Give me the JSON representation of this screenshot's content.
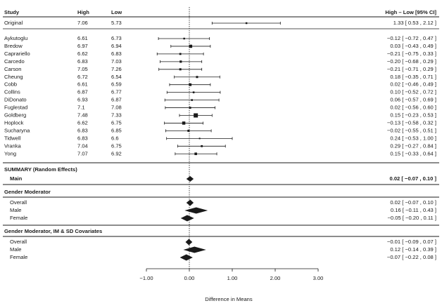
{
  "chart_data": {
    "type": "forest",
    "header": {
      "study": "Study",
      "high": "High",
      "low": "Low",
      "effect": "High – Low [95% CI]"
    },
    "original": {
      "label": "Original",
      "high": "7.06",
      "low": "5.73",
      "est": 1.33,
      "lo": 0.53,
      "hi": 2.12,
      "ci_text": "1.33 [ 0.53 , 2.12 ]"
    },
    "studies": [
      {
        "label": "Aykutoglu",
        "high": "6.61",
        "low": "6.73",
        "est": -0.12,
        "lo": -0.72,
        "hi": 0.47,
        "ci_text": "−0.12 [ −0.72 , 0.47 ]"
      },
      {
        "label": "Bredow",
        "high": "6.97",
        "low": "6.94",
        "est": 0.03,
        "lo": -0.43,
        "hi": 0.49,
        "ci_text": "0.03 [ −0.43 , 0.49 ]"
      },
      {
        "label": "Caprariello",
        "high": "6.62",
        "low": "6.83",
        "est": -0.21,
        "lo": -0.75,
        "hi": 0.33,
        "ci_text": "−0.21 [ −0.75 , 0.33 ]"
      },
      {
        "label": "Carcedo",
        "high": "6.83",
        "low": "7.03",
        "est": -0.2,
        "lo": -0.68,
        "hi": 0.29,
        "ci_text": "−0.20 [ −0.68 , 0.29 ]"
      },
      {
        "label": "Carson",
        "high": "7.05",
        "low": "7.26",
        "est": -0.21,
        "lo": -0.71,
        "hi": 0.29,
        "ci_text": "−0.21 [ −0.71 , 0.29 ]"
      },
      {
        "label": "Cheung",
        "high": "6.72",
        "low": "6.54",
        "est": 0.18,
        "lo": -0.35,
        "hi": 0.71,
        "ci_text": "0.18 [ −0.35 , 0.71 ]"
      },
      {
        "label": "Cobb",
        "high": "6.61",
        "low": "6.59",
        "est": 0.02,
        "lo": -0.46,
        "hi": 0.49,
        "ci_text": "0.02 [ −0.46 , 0.49 ]"
      },
      {
        "label": "Collins",
        "high": "6.87",
        "low": "6.77",
        "est": 0.1,
        "lo": -0.52,
        "hi": 0.72,
        "ci_text": "0.10 [ −0.52 , 0.72 ]"
      },
      {
        "label": "DiDonato",
        "high": "6.93",
        "low": "6.87",
        "est": 0.06,
        "lo": -0.57,
        "hi": 0.69,
        "ci_text": "0.06 [ −0.57 , 0.69 ]"
      },
      {
        "label": "Fuglestad",
        "high": "7.1",
        "low": "7.08",
        "est": 0.02,
        "lo": -0.56,
        "hi": 0.6,
        "ci_text": "0.02 [ −0.56 , 0.60 ]"
      },
      {
        "label": "Goldberg",
        "high": "7.48",
        "low": "7.33",
        "est": 0.15,
        "lo": -0.23,
        "hi": 0.53,
        "ci_text": "0.15 [ −0.23 , 0.53 ]"
      },
      {
        "label": "Hoplock",
        "high": "6.62",
        "low": "6.75",
        "est": -0.13,
        "lo": -0.58,
        "hi": 0.32,
        "ci_text": "−0.13 [ −0.58 , 0.32 ]"
      },
      {
        "label": "Sucharyna",
        "high": "6.83",
        "low": "6.85",
        "est": -0.02,
        "lo": -0.55,
        "hi": 0.51,
        "ci_text": "−0.02 [ −0.55 , 0.51 ]"
      },
      {
        "label": "Tidwell",
        "high": "6.83",
        "low": "6.6",
        "est": 0.24,
        "lo": -0.53,
        "hi": 1.0,
        "ci_text": "0.24 [ −0.53 , 1.00 ]"
      },
      {
        "label": "Vranka",
        "high": "7.04",
        "low": "6.75",
        "est": 0.29,
        "lo": -0.27,
        "hi": 0.84,
        "ci_text": "0.29 [ −0.27 , 0.84 ]"
      },
      {
        "label": "Yong",
        "high": "7.07",
        "low": "6.92",
        "est": 0.15,
        "lo": -0.33,
        "hi": 0.64,
        "ci_text": "0.15 [ −0.33 , 0.64 ]"
      }
    ],
    "summary": {
      "title": "SUMMARY (Random Effects)",
      "rows": [
        {
          "label": "Main",
          "est": 0.02,
          "lo": -0.07,
          "hi": 0.1,
          "ci_text": "0.02 [ −0.07 , 0.10 ]",
          "bold": true
        }
      ]
    },
    "groups": [
      {
        "title": "Gender Moderator",
        "rows": [
          {
            "label": "Overall",
            "est": 0.02,
            "lo": -0.07,
            "hi": 0.1,
            "ci_text": "0.02 [ −0.07 , 0.10 ]"
          },
          {
            "label": "Male",
            "est": 0.16,
            "lo": -0.11,
            "hi": 0.43,
            "ci_text": "0.16 [ −0.11 , 0.43 ]"
          },
          {
            "label": "Female",
            "est": -0.05,
            "lo": -0.2,
            "hi": 0.11,
            "ci_text": "−0.05 [ −0.20 , 0.11 ]"
          }
        ]
      },
      {
        "title": "Gender Moderator, IM & SD Covariates",
        "rows": [
          {
            "label": "Overall",
            "est": -0.01,
            "lo": -0.09,
            "hi": 0.07,
            "ci_text": "−0.01 [ −0.09 , 0.07 ]"
          },
          {
            "label": "Male",
            "est": 0.12,
            "lo": -0.14,
            "hi": 0.39,
            "ci_text": "0.12 [ −0.14 , 0.39 ]"
          },
          {
            "label": "Female",
            "est": -0.07,
            "lo": -0.22,
            "hi": 0.08,
            "ci_text": "−0.07 [ −0.22 , 0.08 ]"
          }
        ]
      }
    ],
    "x_axis": {
      "label": "Difference in Means",
      "ticks": [
        -1.0,
        0.0,
        1.0,
        2.0,
        3.0
      ],
      "tick_labels": [
        "−1.00",
        "0.00",
        "1.00",
        "2.00",
        "3.00"
      ],
      "range": [
        -1.0,
        3.0
      ],
      "reference_line": 0
    },
    "colors": {
      "ink": "#1a1a1a",
      "separator": "#555555"
    }
  }
}
